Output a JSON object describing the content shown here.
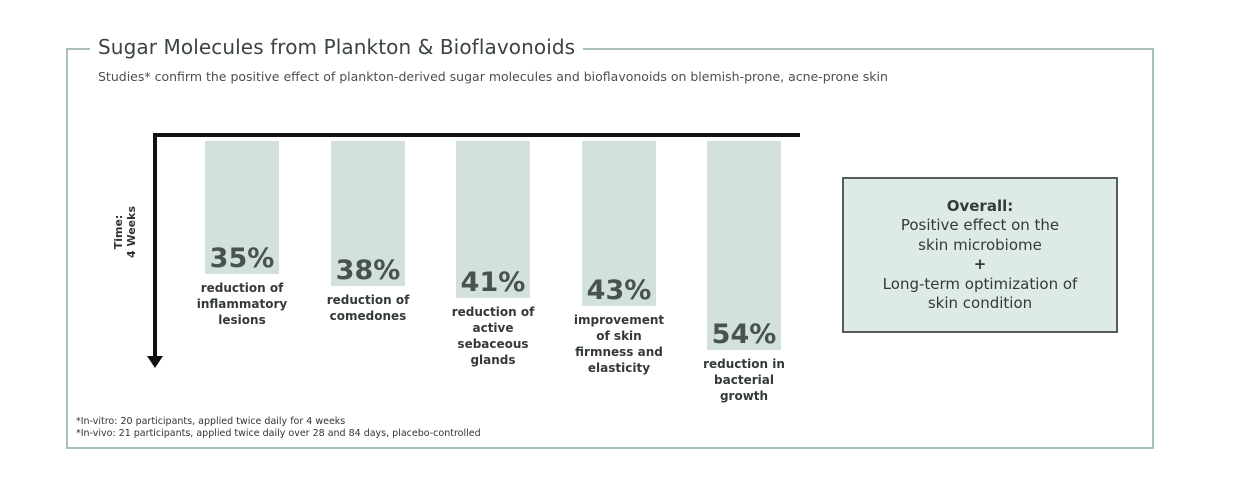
{
  "header": {
    "title": "Sugar Molecules from Plankton & Bioflavonoids",
    "subtitle": "Studies* confirm the positive effect of plankton-derived sugar molecules and bioflavonoids on blemish-prone, acne-prone skin"
  },
  "axis": {
    "line1": "Time:",
    "line2": "4 Weeks"
  },
  "chart_data": {
    "type": "bar",
    "title": "Sugar Molecules from Plankton & Bioflavonoids",
    "xlabel": "",
    "ylabel": "Time: 4 Weeks",
    "categories": [
      "reduction of inflammatory lesions",
      "reduction of comedones",
      "reduction of active sebaceous glands",
      "improvement of skin firmness and elasticity",
      "reduction in bacterial growth"
    ],
    "values": [
      35,
      38,
      41,
      43,
      54
    ],
    "value_labels": [
      "35%",
      "38%",
      "41%",
      "43%",
      "54%"
    ],
    "label_lines": [
      [
        "reduction of",
        "inflammatory",
        "lesions"
      ],
      [
        "reduction of",
        "comedones"
      ],
      [
        "reduction of",
        "active",
        "sebaceous",
        "glands"
      ],
      [
        "improvement",
        "of skin",
        "firmness and",
        "elasticity"
      ],
      [
        "reduction in",
        "bacterial",
        "growth"
      ]
    ],
    "ylim": [
      0,
      100
    ],
    "bar_color": "#d2e1db"
  },
  "summary": {
    "heading": "Overall:",
    "line1": "Positive effect on the",
    "line2": "skin microbiome",
    "plus": "+",
    "line3": "Long-term optimization of",
    "line4": "skin condition"
  },
  "footnotes": {
    "invitro": "*In-vitro: 20 participants, applied twice daily for 4 weeks",
    "invivo": "*In-vivo: 21 participants, applied twice daily over 28 and 84 days, placebo-controlled"
  },
  "colors": {
    "frame": "#a9c0b8",
    "bar": "#d2e1db",
    "summary_bg": "#deeae5",
    "axis": "#111111"
  }
}
